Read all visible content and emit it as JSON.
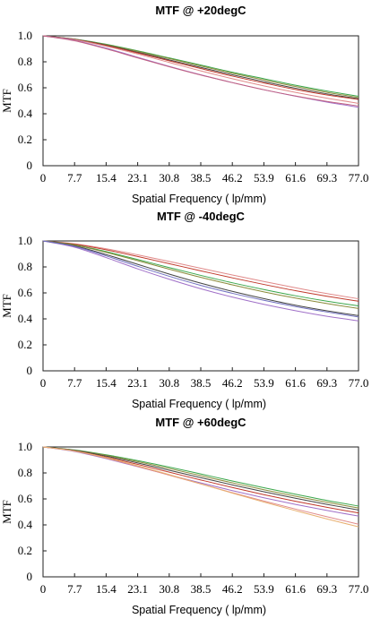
{
  "chart_data": [
    {
      "type": "line",
      "title": "MTF @ +20degC",
      "xlabel": "Spatial Frequency ( lp/mm)",
      "ylabel": "MTF",
      "xlim": [
        0,
        77.0
      ],
      "ylim": [
        0,
        1.0
      ],
      "x_ticks": [
        "0",
        "7.7",
        "15.4",
        "23.1",
        "30.8",
        "38.5",
        "46.2",
        "53.9",
        "61.6",
        "69.3",
        "77.0"
      ],
      "y_ticks": [
        "0",
        "0.2",
        "0.4",
        "0.6",
        "0.8",
        "1.0"
      ],
      "x": [
        0,
        7.7,
        15.4,
        23.1,
        30.8,
        38.5,
        46.2,
        53.9,
        61.6,
        69.3,
        77.0
      ],
      "series": [
        {
          "color": "#3aa64a",
          "values": [
            1.0,
            0.975,
            0.935,
            0.885,
            0.83,
            0.775,
            0.72,
            0.67,
            0.62,
            0.575,
            0.535
          ]
        },
        {
          "color": "#8a8a3a",
          "values": [
            1.0,
            0.974,
            0.932,
            0.88,
            0.825,
            0.768,
            0.712,
            0.66,
            0.61,
            0.565,
            0.525
          ]
        },
        {
          "color": "#444444",
          "values": [
            1.0,
            0.973,
            0.928,
            0.873,
            0.815,
            0.757,
            0.7,
            0.647,
            0.597,
            0.553,
            0.515
          ]
        },
        {
          "color": "#c0392b",
          "values": [
            1.0,
            0.972,
            0.925,
            0.868,
            0.808,
            0.748,
            0.69,
            0.637,
            0.587,
            0.545,
            0.51
          ]
        },
        {
          "color": "#e08a8a",
          "values": [
            1.0,
            0.97,
            0.92,
            0.86,
            0.795,
            0.73,
            0.67,
            0.615,
            0.565,
            0.52,
            0.48
          ]
        },
        {
          "color": "#a070c8",
          "values": [
            1.0,
            0.965,
            0.905,
            0.835,
            0.765,
            0.7,
            0.64,
            0.585,
            0.535,
            0.49,
            0.45
          ]
        },
        {
          "color": "#c06080",
          "values": [
            1.0,
            0.962,
            0.9,
            0.83,
            0.762,
            0.698,
            0.64,
            0.585,
            0.537,
            0.495,
            0.46
          ]
        }
      ]
    },
    {
      "type": "line",
      "title": "MTF @ -40degC",
      "xlabel": "Spatial Frequency ( lp/mm)",
      "ylabel": "MTF",
      "xlim": [
        0,
        77.0
      ],
      "ylim": [
        0,
        1.0
      ],
      "x_ticks": [
        "0",
        "7.7",
        "15.4",
        "23.1",
        "30.8",
        "38.5",
        "46.2",
        "53.9",
        "61.6",
        "69.3",
        "77.0"
      ],
      "y_ticks": [
        "0",
        "0.2",
        "0.4",
        "0.6",
        "0.8",
        "1.0"
      ],
      "x": [
        0,
        7.7,
        15.4,
        23.1,
        30.8,
        38.5,
        46.2,
        53.9,
        61.6,
        69.3,
        77.0
      ],
      "series": [
        {
          "color": "#e08a8a",
          "values": [
            1.0,
            0.978,
            0.94,
            0.893,
            0.842,
            0.79,
            0.738,
            0.688,
            0.64,
            0.595,
            0.555
          ]
        },
        {
          "color": "#c0392b",
          "values": [
            1.0,
            0.975,
            0.932,
            0.88,
            0.825,
            0.77,
            0.716,
            0.665,
            0.617,
            0.574,
            0.536
          ]
        },
        {
          "color": "#3aa64a",
          "values": [
            1.0,
            0.97,
            0.918,
            0.857,
            0.795,
            0.735,
            0.678,
            0.626,
            0.578,
            0.536,
            0.5
          ]
        },
        {
          "color": "#8a8a3a",
          "values": [
            1.0,
            0.968,
            0.912,
            0.848,
            0.783,
            0.72,
            0.662,
            0.608,
            0.56,
            0.518,
            0.48
          ]
        },
        {
          "color": "#444444",
          "values": [
            1.0,
            0.962,
            0.895,
            0.82,
            0.745,
            0.675,
            0.612,
            0.556,
            0.505,
            0.462,
            0.425
          ]
        },
        {
          "color": "#a070c8",
          "values": [
            1.0,
            0.952,
            0.872,
            0.785,
            0.705,
            0.632,
            0.568,
            0.512,
            0.463,
            0.42,
            0.385
          ]
        },
        {
          "color": "#7070c0",
          "values": [
            1.0,
            0.958,
            0.885,
            0.805,
            0.728,
            0.658,
            0.597,
            0.543,
            0.495,
            0.453,
            0.415
          ]
        }
      ]
    },
    {
      "type": "line",
      "title": "MTF @ +60degC",
      "xlabel": "Spatial Frequency ( lp/mm)",
      "ylabel": "MTF",
      "xlim": [
        0,
        77.0
      ],
      "ylim": [
        0,
        1.0
      ],
      "x_ticks": [
        "0",
        "7.7",
        "15.4",
        "23.1",
        "30.8",
        "38.5",
        "46.2",
        "53.9",
        "61.6",
        "69.3",
        "77.0"
      ],
      "y_ticks": [
        "0",
        "0.2",
        "0.4",
        "0.6",
        "0.8",
        "1.0"
      ],
      "x": [
        0,
        7.7,
        15.4,
        23.1,
        30.8,
        38.5,
        46.2,
        53.9,
        61.6,
        69.3,
        77.0
      ],
      "series": [
        {
          "color": "#3aa64a",
          "values": [
            1.0,
            0.977,
            0.94,
            0.895,
            0.845,
            0.792,
            0.738,
            0.686,
            0.636,
            0.588,
            0.545
          ]
        },
        {
          "color": "#8a8a3a",
          "values": [
            1.0,
            0.975,
            0.935,
            0.887,
            0.834,
            0.779,
            0.724,
            0.671,
            0.621,
            0.574,
            0.53
          ]
        },
        {
          "color": "#444444",
          "values": [
            1.0,
            0.973,
            0.929,
            0.877,
            0.821,
            0.764,
            0.708,
            0.655,
            0.605,
            0.558,
            0.515
          ]
        },
        {
          "color": "#c0392b",
          "values": [
            1.0,
            0.97,
            0.922,
            0.866,
            0.806,
            0.746,
            0.688,
            0.633,
            0.582,
            0.535,
            0.492
          ]
        },
        {
          "color": "#a070c8",
          "values": [
            1.0,
            0.965,
            0.91,
            0.848,
            0.785,
            0.723,
            0.664,
            0.609,
            0.558,
            0.511,
            0.468
          ]
        },
        {
          "color": "#e08a8a",
          "values": [
            1.0,
            0.968,
            0.914,
            0.85,
            0.783,
            0.715,
            0.648,
            0.584,
            0.522,
            0.463,
            0.405
          ]
        },
        {
          "color": "#e8b070",
          "values": [
            1.0,
            0.969,
            0.918,
            0.855,
            0.787,
            0.716,
            0.645,
            0.576,
            0.51,
            0.446,
            0.385
          ]
        }
      ]
    }
  ]
}
